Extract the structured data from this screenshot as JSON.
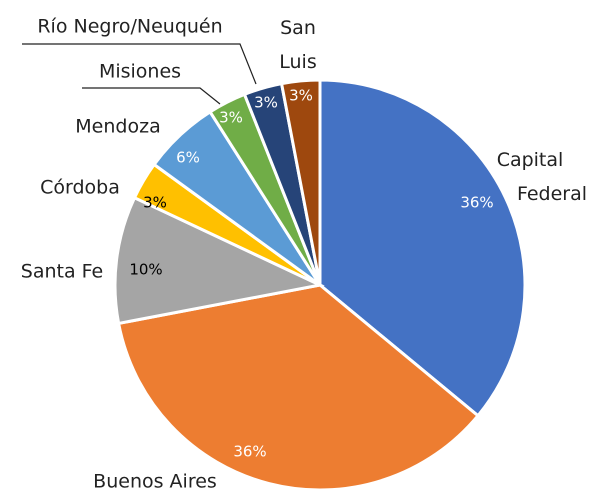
{
  "chart_data": {
    "type": "pie",
    "categories": [
      "Capital Federal",
      "Buenos Aires",
      "Santa Fe",
      "Córdoba",
      "Mendoza",
      "Misiones",
      "Río Negro/Neuquén",
      "San Luis"
    ],
    "values": [
      36,
      36,
      10,
      3,
      6,
      3,
      3,
      3
    ],
    "value_labels": [
      "36%",
      "36%",
      "10%",
      "3%",
      "6%",
      "3%",
      "3%",
      "3%"
    ],
    "colors": [
      "#4472c4",
      "#ed7d31",
      "#a5a5a5",
      "#ffc000",
      "#5b9bd5",
      "#70ad47",
      "#264478",
      "#9e480e"
    ]
  }
}
